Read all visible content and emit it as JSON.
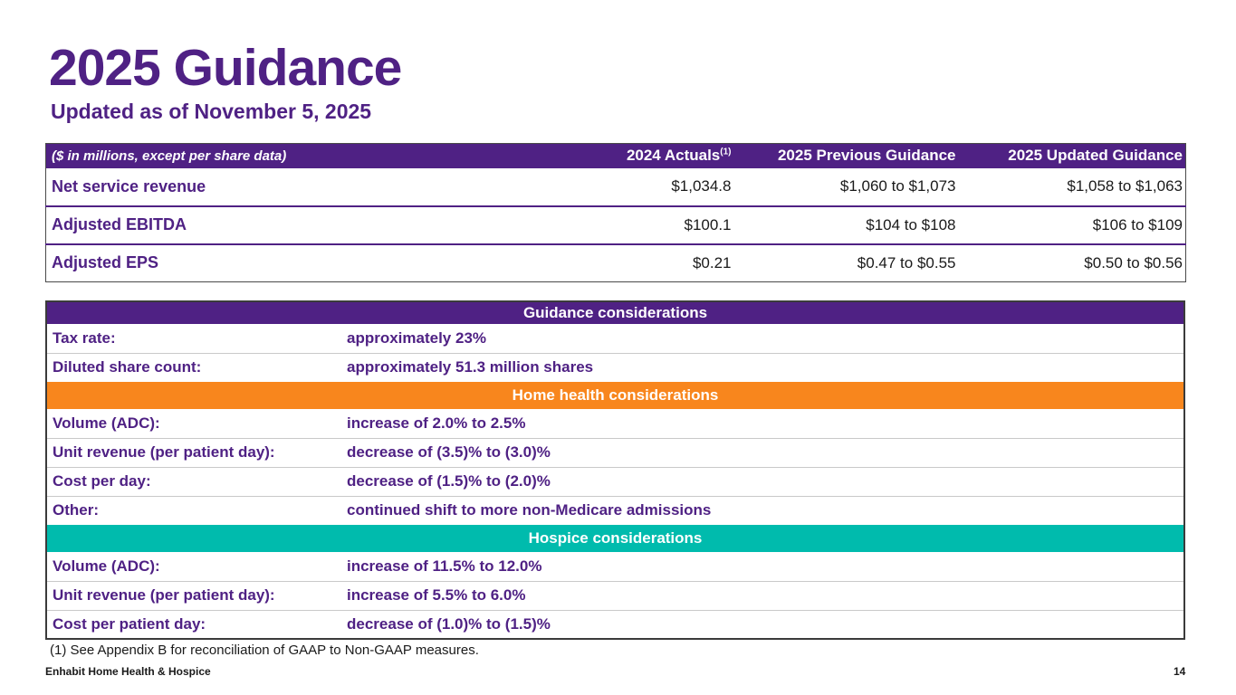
{
  "slide": {
    "title": "2025 Guidance",
    "subtitle": "Updated as of November 5, 2025",
    "footnote": "(1) See Appendix B for reconciliation of GAAP to Non-GAAP measures.",
    "footer_left": "Enhabit Home Health & Hospice",
    "page_number": "14"
  },
  "colors": {
    "purple": "#4F2184",
    "orange": "#F8861D",
    "teal": "#00BBAD"
  },
  "guidance_table": {
    "corner_label": "($ in millions, except per share data)",
    "footnote_marker": "(1)",
    "columns": [
      "2024 Actuals",
      "2025 Previous Guidance",
      "2025 Updated Guidance"
    ],
    "rows": [
      {
        "label": "Net service revenue",
        "actuals": "$1,034.8",
        "previous": "$1,060 to $1,073",
        "updated": "$1,058 to $1,063"
      },
      {
        "label": "Adjusted EBITDA",
        "actuals": "$100.1",
        "previous": "$104 to $108",
        "updated": "$106 to $109"
      },
      {
        "label": "Adjusted EPS",
        "actuals": "$0.21",
        "previous": "$0.47 to $0.55",
        "updated": "$0.50 to $0.56"
      }
    ]
  },
  "considerations_table": {
    "sections": [
      {
        "header": "Guidance considerations",
        "color": "#4F2184",
        "rows": [
          {
            "label": "Tax rate:",
            "value": "approximately 23%"
          },
          {
            "label": "Diluted share count:",
            "value": "approximately 51.3 million shares"
          }
        ]
      },
      {
        "header": "Home health considerations",
        "color": "#F8861D",
        "rows": [
          {
            "label": "Volume (ADC):",
            "value": "increase of 2.0% to 2.5%"
          },
          {
            "label": "Unit revenue (per patient day):",
            "value": "decrease of (3.5)% to (3.0)%"
          },
          {
            "label": "Cost per day:",
            "value": "decrease of (1.5)% to (2.0)%"
          },
          {
            "label": "Other:",
            "value": "continued shift to more non-Medicare admissions"
          }
        ]
      },
      {
        "header": "Hospice considerations",
        "color": "#00BBAD",
        "rows": [
          {
            "label": "Volume (ADC):",
            "value": "increase of 11.5% to 12.0%"
          },
          {
            "label": "Unit revenue (per patient day):",
            "value": "increase of 5.5% to 6.0%"
          },
          {
            "label": "Cost per patient day:",
            "value": "decrease of (1.0)% to (1.5)%"
          }
        ]
      }
    ]
  }
}
